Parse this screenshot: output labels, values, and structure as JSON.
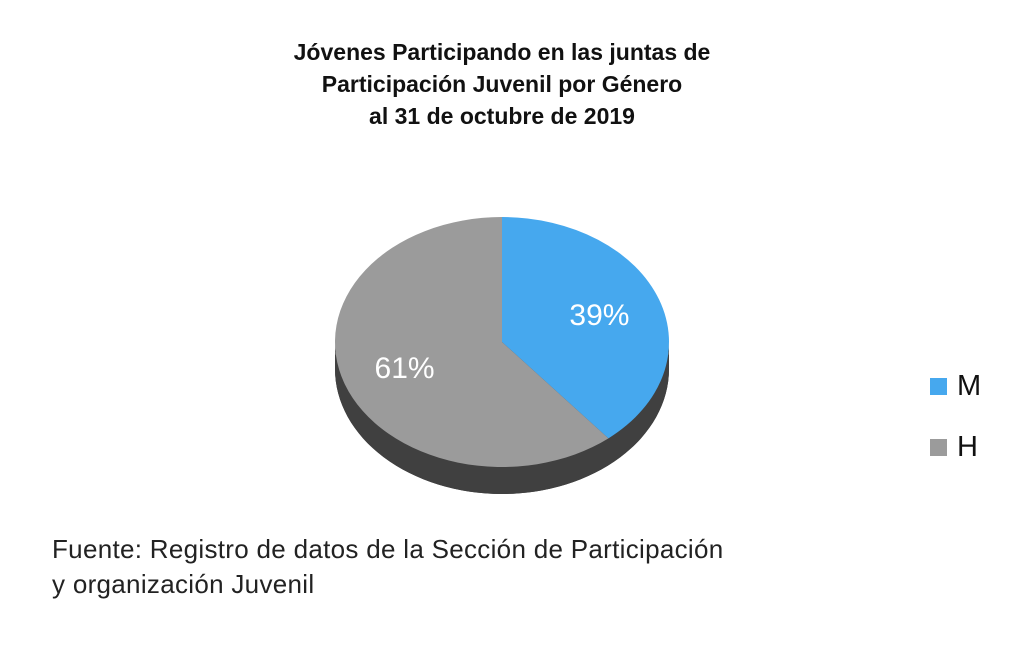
{
  "chart_data": {
    "type": "pie",
    "title_lines": [
      "Jóvenes Participando en las juntas de",
      "Participación Juvenil por Género",
      "al 31 de octubre de 2019"
    ],
    "slices": [
      {
        "label": "M",
        "value": 39,
        "display": "39%",
        "color": "#46a8ee"
      },
      {
        "label": "H",
        "value": 61,
        "display": "61%",
        "color": "#9b9b9b"
      }
    ],
    "legend_position": "right",
    "shadow_color": "#404040"
  },
  "source_lines": [
    "Fuente: Registro de datos de la Sección de Participación",
    "y organización Juvenil"
  ]
}
